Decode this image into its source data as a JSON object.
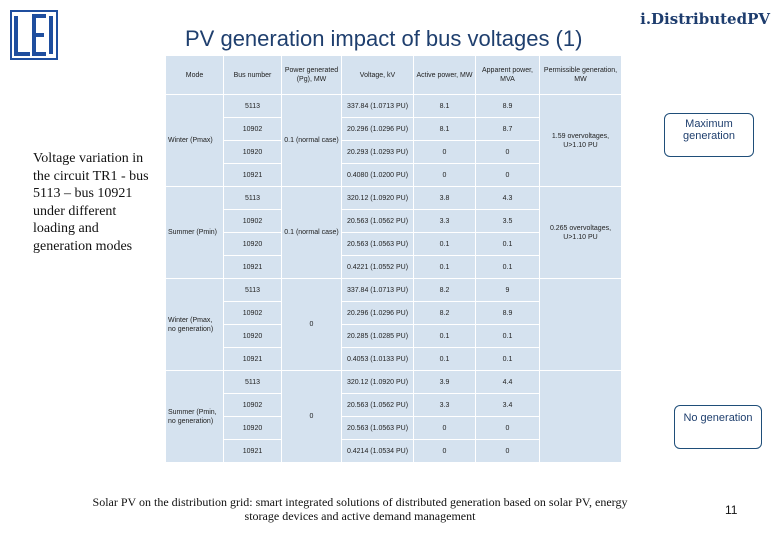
{
  "brand": "i.DistributedPV",
  "title": "PV generation impact of bus voltages (1)",
  "side_text": "Voltage variation in the circuit TR1 - bus 5113 – bus 10921 under different loading and generation modes",
  "headers": [
    "Mode",
    "Bus number",
    "Power generated (Pg), MW",
    "Voltage, kV",
    "Active power, MW",
    "Apparent power, MVA",
    "Permissible generation, MW"
  ],
  "groups": [
    {
      "mode": "Winter (Pmax)",
      "power": "0.1 (normal case)",
      "permissible": "1.59 overvoltages, U>1.10 PU",
      "rows": [
        {
          "bus": "5113",
          "voltage": "337.84 (1.0713 PU)",
          "active": "8.1",
          "apparent": "8.9"
        },
        {
          "bus": "10902",
          "voltage": "20.296 (1.0296 PU)",
          "active": "8.1",
          "apparent": "8.7"
        },
        {
          "bus": "10920",
          "voltage": "20.293 (1.0293 PU)",
          "active": "0",
          "apparent": "0"
        },
        {
          "bus": "10921",
          "voltage": "0.4080 (1.0200 PU)",
          "active": "0",
          "apparent": "0"
        }
      ]
    },
    {
      "mode": "Summer (Pmin)",
      "power": "0.1 (normal case)",
      "permissible": "0.265 overvoltages, U>1.10 PU",
      "rows": [
        {
          "bus": "5113",
          "voltage": "320.12 (1.0920 PU)",
          "active": "3.8",
          "apparent": "4.3"
        },
        {
          "bus": "10902",
          "voltage": "20.563 (1.0562 PU)",
          "active": "3.3",
          "apparent": "3.5"
        },
        {
          "bus": "10920",
          "voltage": "20.563 (1.0563 PU)",
          "active": "0.1",
          "apparent": "0.1"
        },
        {
          "bus": "10921",
          "voltage": "0.4221 (1.0552 PU)",
          "active": "0.1",
          "apparent": "0.1"
        }
      ]
    },
    {
      "mode": "Winter (Pmax, no generation)",
      "power": "0",
      "permissible": "",
      "rows": [
        {
          "bus": "5113",
          "voltage": "337.84 (1.0713 PU)",
          "active": "8.2",
          "apparent": "9"
        },
        {
          "bus": "10902",
          "voltage": "20.296 (1.0296 PU)",
          "active": "8.2",
          "apparent": "8.9"
        },
        {
          "bus": "10920",
          "voltage": "20.285 (1.0285 PU)",
          "active": "0.1",
          "apparent": "0.1"
        },
        {
          "bus": "10921",
          "voltage": "0.4053 (1.0133 PU)",
          "active": "0.1",
          "apparent": "0.1"
        }
      ]
    },
    {
      "mode": "Summer (Pmin, no generation)",
      "power": "0",
      "permissible": "",
      "rows": [
        {
          "bus": "5113",
          "voltage": "320.12 (1.0920 PU)",
          "active": "3.9",
          "apparent": "4.4"
        },
        {
          "bus": "10902",
          "voltage": "20.563 (1.0562 PU)",
          "active": "3.3",
          "apparent": "3.4"
        },
        {
          "bus": "10920",
          "voltage": "20.563 (1.0563 PU)",
          "active": "0",
          "apparent": "0"
        },
        {
          "bus": "10921",
          "voltage": "0.4214 (1.0534 PU)",
          "active": "0",
          "apparent": "0"
        }
      ]
    }
  ],
  "callouts": {
    "max": "Maximum generation",
    "none": "No generation"
  },
  "footer": "Solar PV on the distribution grid: smart integrated solutions of distributed generation based on solar PV, energy storage devices and active demand management",
  "page_number": "11"
}
